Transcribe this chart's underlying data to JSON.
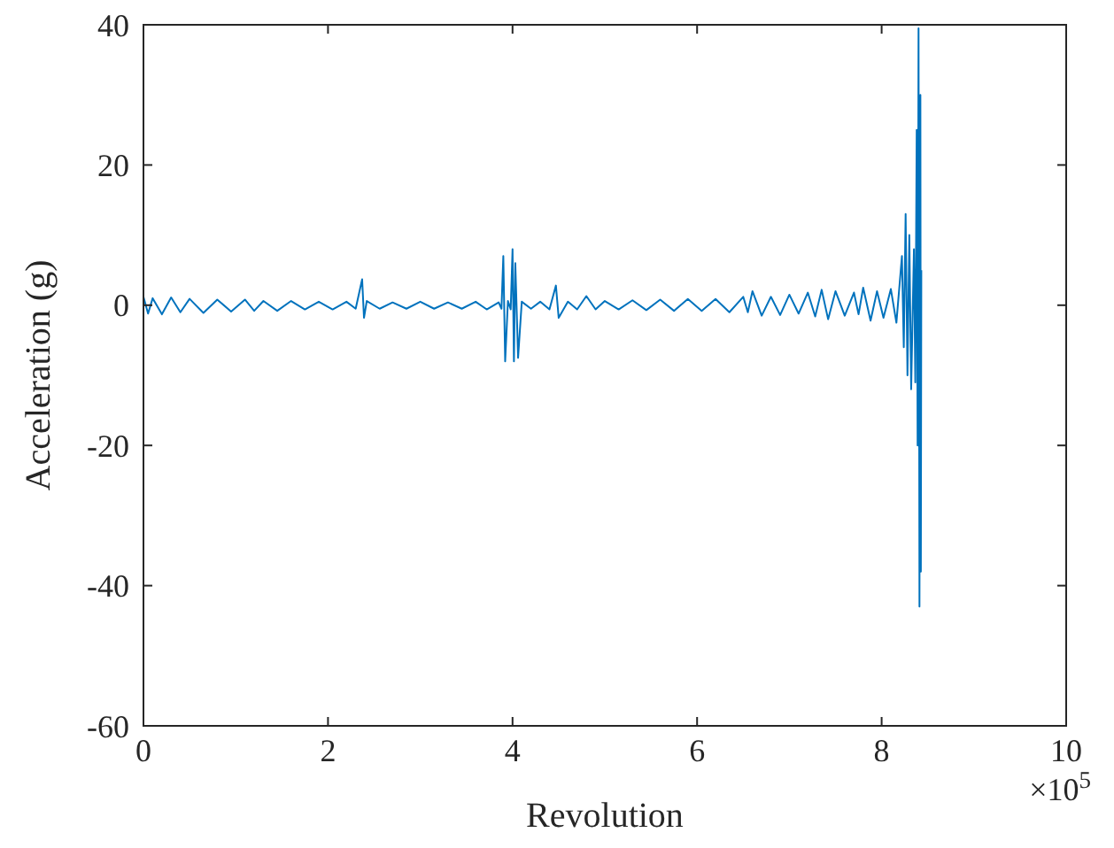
{
  "chart_data": {
    "type": "line",
    "xlabel": "Revolution",
    "ylabel": "Acceleration (g)",
    "annotations": [
      "×10$^{5}$"
    ],
    "x": [
      0,
      0.05,
      0.1,
      0.2,
      0.3,
      0.4,
      0.5,
      0.65,
      0.8,
      0.95,
      1.1,
      1.2,
      1.3,
      1.45,
      1.6,
      1.75,
      1.9,
      2.05,
      2.2,
      2.3,
      2.37,
      2.39,
      2.42,
      2.56,
      2.7,
      2.85,
      3,
      3.15,
      3.3,
      3.45,
      3.6,
      3.72,
      3.85,
      3.88,
      3.9,
      3.92,
      3.95,
      3.98,
      4,
      4.015,
      4.03,
      4.06,
      4.1,
      4.2,
      4.3,
      4.4,
      4.47,
      4.5,
      4.6,
      4.7,
      4.8,
      4.9,
      5,
      5.15,
      5.3,
      5.45,
      5.6,
      5.75,
      5.9,
      6.05,
      6.2,
      6.35,
      6.5,
      6.55,
      6.6,
      6.7,
      6.8,
      6.9,
      7,
      7.1,
      7.2,
      7.28,
      7.35,
      7.42,
      7.5,
      7.6,
      7.7,
      7.75,
      7.8,
      7.88,
      7.95,
      8.02,
      8.1,
      8.16,
      8.22,
      8.24,
      8.26,
      8.28,
      8.3,
      8.32,
      8.35,
      8.365,
      8.38,
      8.39,
      8.4,
      8.41,
      8.42,
      8.425,
      8.43
    ],
    "series": [
      {
        "color": "#0072bd",
        "values": [
          1.2,
          -1.2,
          1,
          -1.3,
          1.1,
          -1,
          0.9,
          -1.1,
          0.8,
          -0.9,
          0.8,
          -0.8,
          0.6,
          -0.8,
          0.6,
          -0.6,
          0.5,
          -0.6,
          0.5,
          -0.5,
          3.7,
          -1.8,
          0.6,
          -0.5,
          0.4,
          -0.5,
          0.5,
          -0.5,
          0.4,
          -0.5,
          0.5,
          -0.6,
          0.4,
          -0.5,
          7,
          -8,
          0.6,
          -0.6,
          8,
          -8,
          6,
          -7.5,
          0.5,
          -0.5,
          0.5,
          -0.6,
          2.8,
          -1.8,
          0.5,
          -0.6,
          1.3,
          -0.6,
          0.6,
          -0.6,
          0.7,
          -0.7,
          0.8,
          -0.8,
          0.9,
          -0.8,
          0.9,
          -1,
          1.2,
          -1,
          2,
          -1.5,
          1.2,
          -1.4,
          1.5,
          -1.2,
          1.8,
          -1.6,
          2.2,
          -2,
          2,
          -1.5,
          1.8,
          -1.3,
          2.5,
          -2.2,
          2,
          -1.8,
          2.3,
          -2.5,
          7,
          -6,
          13,
          -10,
          10,
          -12,
          8,
          -11,
          25,
          -20,
          39.5,
          -43,
          30,
          -38,
          5
        ]
      }
    ],
    "xlim": [
      0,
      10
    ],
    "xticks": [
      0,
      2,
      4,
      6,
      8,
      10
    ],
    "ylim": [
      -60,
      40
    ],
    "yticks": [
      -60,
      -40,
      -20,
      0,
      20,
      40
    ],
    "grid": false
  }
}
